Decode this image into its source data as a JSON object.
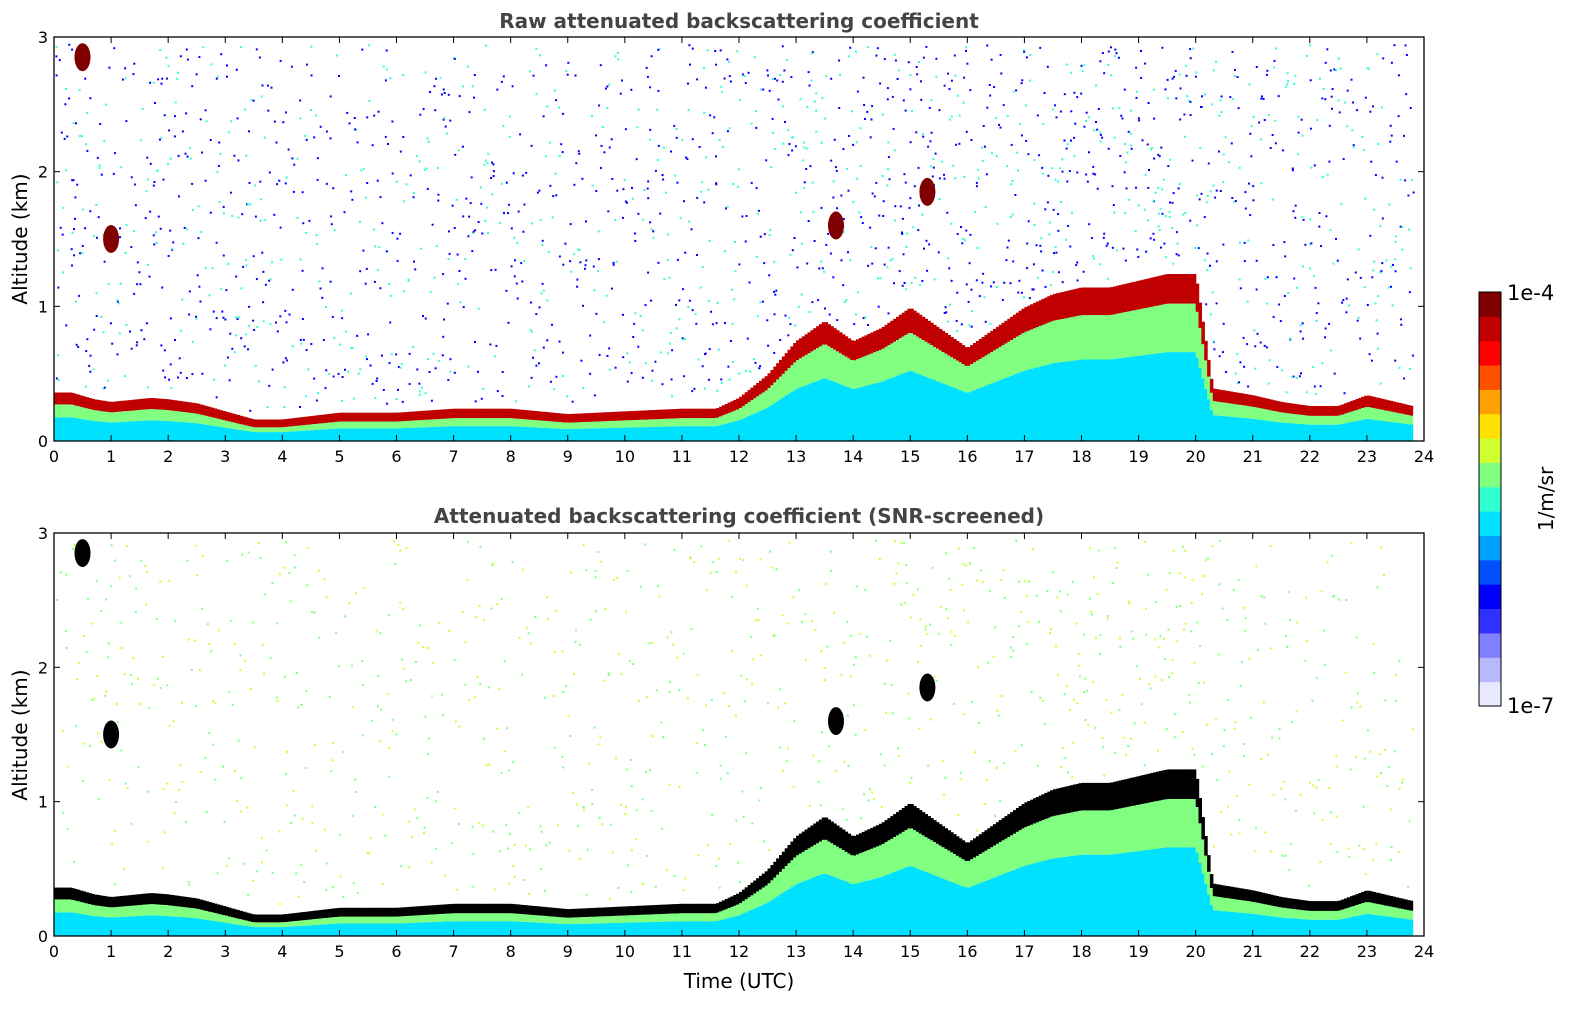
{
  "chart_data": [
    {
      "type": "heatmap",
      "title": "Raw attenuated backscattering coefficient",
      "xlabel": "",
      "ylabel": "Altitude (km)",
      "xlim": [
        0,
        24
      ],
      "ylim": [
        0,
        3
      ],
      "xticks": [
        0,
        1,
        2,
        3,
        4,
        5,
        6,
        7,
        8,
        9,
        10,
        11,
        12,
        13,
        14,
        15,
        16,
        17,
        18,
        19,
        20,
        21,
        22,
        23,
        24
      ],
      "yticks": [
        0,
        1,
        2,
        3
      ],
      "data_end_time": 23.8,
      "color_scale": "log",
      "boundary_layer": {
        "time": [
          0,
          0.3,
          0.7,
          1.0,
          1.7,
          2.0,
          2.5,
          3.0,
          3.5,
          4.0,
          5.0,
          6.0,
          7.0,
          8.0,
          9.0,
          10.0,
          11.0,
          11.6,
          12.0,
          12.5,
          13.0,
          13.5,
          14.0,
          14.5,
          15.0,
          15.5,
          16.0,
          16.5,
          17.0,
          17.5,
          18.0,
          18.5,
          19.0,
          19.5,
          20.0,
          20.3,
          21.0,
          21.5,
          22.0,
          22.5,
          23.0,
          23.5,
          23.8
        ],
        "altitude": [
          0.32,
          0.32,
          0.27,
          0.25,
          0.28,
          0.27,
          0.24,
          0.18,
          0.12,
          0.12,
          0.17,
          0.17,
          0.2,
          0.2,
          0.16,
          0.18,
          0.2,
          0.2,
          0.28,
          0.45,
          0.7,
          0.85,
          0.7,
          0.8,
          0.95,
          0.8,
          0.65,
          0.8,
          0.95,
          1.05,
          1.1,
          1.1,
          1.15,
          1.2,
          1.2,
          0.35,
          0.3,
          0.25,
          0.22,
          0.22,
          0.3,
          0.25,
          0.22
        ]
      },
      "cloud_features": [
        {
          "time": 0.5,
          "altitude": 2.85,
          "label": "cloud"
        },
        {
          "time": 1.0,
          "altitude": 1.5,
          "label": "cloud"
        },
        {
          "time": 13.7,
          "altitude": 1.6,
          "label": "cloud"
        },
        {
          "time": 15.3,
          "altitude": 1.85,
          "label": "cloud"
        }
      ]
    },
    {
      "type": "heatmap",
      "title": "Attenuated backscattering coefficient (SNR-screened)",
      "xlabel": "Time (UTC)",
      "ylabel": "Altitude (km)",
      "xlim": [
        0,
        24
      ],
      "ylim": [
        0,
        3
      ],
      "xticks": [
        0,
        1,
        2,
        3,
        4,
        5,
        6,
        7,
        8,
        9,
        10,
        11,
        12,
        13,
        14,
        15,
        16,
        17,
        18,
        19,
        20,
        21,
        22,
        23,
        24
      ],
      "yticks": [
        0,
        1,
        2,
        3
      ],
      "data_end_time": 23.8,
      "color_scale": "log",
      "saturated_color": "#000000"
    }
  ],
  "colorbar": {
    "max_label": "1e-4",
    "min_label": "1e-7",
    "unit_label": "1/m/sr",
    "colormap": "jet",
    "colors": [
      "#e8e8ff",
      "#b8b8ff",
      "#8080ff",
      "#3030ff",
      "#0000ff",
      "#0050ff",
      "#00a0ff",
      "#00e0ff",
      "#30ffd0",
      "#80ff80",
      "#d0ff30",
      "#ffe000",
      "#ffa000",
      "#ff5000",
      "#ff0000",
      "#c00000",
      "#800000"
    ]
  }
}
